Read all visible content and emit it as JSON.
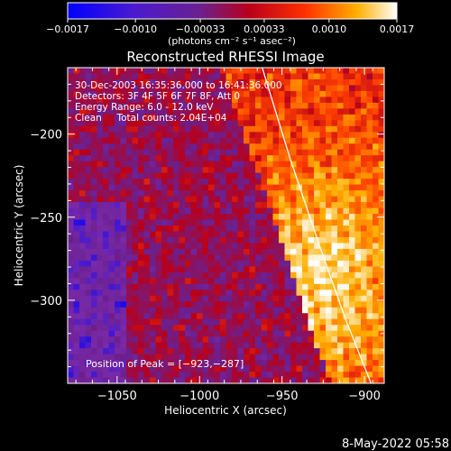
{
  "chart_data": {
    "type": "heatmap",
    "title": "Reconstructed RHESSI Image",
    "xlabel": "Heliocentric X (arcsec)",
    "ylabel": "Heliocentric Y (arcsec)",
    "xlim": [
      -1080,
      -888
    ],
    "ylim": [
      -350,
      -160
    ],
    "x_ticks": [
      -1050,
      -1000,
      -950,
      -900
    ],
    "x_tick_labels": [
      "−1050",
      "−1000",
      "−950",
      "−900"
    ],
    "y_ticks": [
      -200,
      -250,
      -300
    ],
    "y_tick_labels": [
      "−200",
      "−250",
      "−300"
    ],
    "colorbar": {
      "range": [
        -0.0017,
        0.0017
      ],
      "ticks": [
        -0.0017,
        -0.001,
        -0.00033,
        0.00033,
        0.001,
        0.0017
      ],
      "tick_labels": [
        "−0.0017",
        "−0.0010",
        "−0.00033",
        "0.00033",
        "0.0010",
        "0.0017"
      ],
      "units": "(photons cm⁻² s⁻¹ asec⁻²)",
      "colors": [
        "#0000ff",
        "#7a2aa8",
        "#6a2090",
        "#b8001a",
        "#ff4000",
        "#ffb000",
        "#ffffff"
      ]
    },
    "annotations": [
      "30-Dec-2003 16:35:36.000 to 16:41:36.000",
      "Detectors: 3F 4F 5F 6F 7F 8F, Att 0",
      "Energy Range: 6.0 - 12.0 keV",
      "Clean     Total counts: 2.04E+04"
    ],
    "peak_label": "Position of Peak = [−923,−287]",
    "peak": [
      -923,
      -287
    ],
    "limb_line": [
      [
        -962,
        -160
      ],
      [
        -945,
        -215
      ],
      [
        -928,
        -265
      ],
      [
        -912,
        -310
      ],
      [
        -896,
        -350
      ]
    ],
    "grid": false
  },
  "footer": {
    "timestamp": "8-May-2022 05:58"
  }
}
